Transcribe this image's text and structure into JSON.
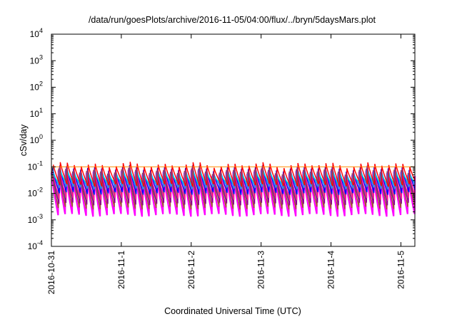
{
  "chart_data": {
    "type": "line",
    "title": "/data/run/goesPlots/archive/2016-11-05/04:00/flux/../bryn/5daysMars.plot",
    "xlabel": "Coordinated Universal Time (UTC)",
    "ylabel": "cSv/day",
    "yscale": "log",
    "ylim": [
      0.0001,
      10000
    ],
    "y_ticks": [
      {
        "base": "10",
        "exp": "4"
      },
      {
        "base": "10",
        "exp": "3"
      },
      {
        "base": "10",
        "exp": "2"
      },
      {
        "base": "10",
        "exp": "1"
      },
      {
        "base": "10",
        "exp": "0"
      },
      {
        "base": "10",
        "exp": "-1"
      },
      {
        "base": "10",
        "exp": "-2"
      },
      {
        "base": "10",
        "exp": "-3"
      },
      {
        "base": "10",
        "exp": "-4"
      }
    ],
    "x_ticks": [
      "2016-10-31",
      "2016-11-1",
      "2016-11-2",
      "2016-11-3",
      "2016-11-4",
      "2016-11-5"
    ],
    "xlim_days": [
      0,
      5.2
    ],
    "grid": false,
    "legend": "none",
    "reference_line": {
      "value": 0.1,
      "color": "#ff8c00"
    },
    "oscillation_period_days": 0.1,
    "series": [
      {
        "color": "#ff00ff",
        "peak": 0.06,
        "trough": 0.0015
      },
      {
        "color": "#a0522d",
        "peak": 0.07,
        "trough": 0.0028
      },
      {
        "color": "#20b2aa",
        "peak": 0.06,
        "trough": 0.005
      },
      {
        "color": "#9acd32",
        "peak": 0.05,
        "trough": 0.007
      },
      {
        "color": "#8b008b",
        "peak": 0.065,
        "trough": 0.004
      },
      {
        "color": "#ff1493",
        "peak": 0.08,
        "trough": 0.006
      },
      {
        "color": "#0000ff",
        "peak": 0.09,
        "trough": 0.01
      },
      {
        "color": "#1e90ff",
        "peak": 0.075,
        "trough": 0.016
      },
      {
        "color": "#00ced1",
        "peak": 0.055,
        "trough": 0.022
      },
      {
        "color": "#ff0000",
        "peak": 0.12,
        "trough": 0.02
      }
    ]
  }
}
